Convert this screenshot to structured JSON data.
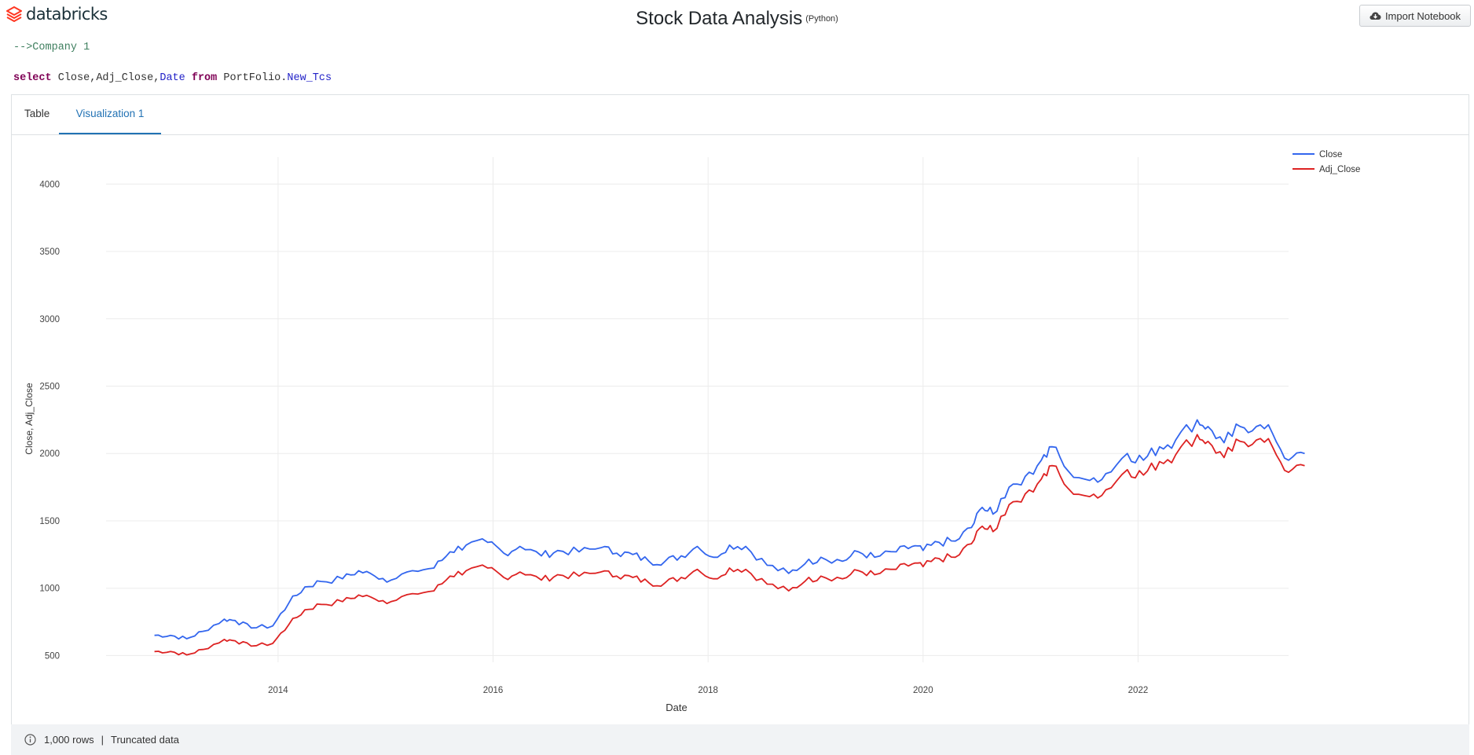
{
  "app": {
    "brand": "databricks"
  },
  "header": {
    "title": "Stock Data Analysis",
    "language": "(Python)",
    "import_label": "Import Notebook"
  },
  "cell": {
    "comment": "-->Company 1",
    "sql": {
      "kw_select": "select",
      "columns": "Close,Adj_Close,",
      "col_date": "Date",
      "kw_from": "from",
      "schema": "PortFolio.",
      "table": "New_Tcs"
    }
  },
  "tabs": [
    {
      "label": "Table",
      "active": false
    },
    {
      "label": "Visualization 1",
      "active": true
    }
  ],
  "footer": {
    "rows": "1,000 rows",
    "separator": "|",
    "status": "Truncated data"
  },
  "colors": {
    "close": "#3366ee",
    "adj_close": "#dd2222",
    "grid": "#ececec"
  },
  "chart_data": {
    "type": "line",
    "title": "",
    "xlabel": "Date",
    "ylabel": "Close, Adj_Close",
    "xlim": [
      2012.4,
      2023.4
    ],
    "ylim": [
      450,
      4200
    ],
    "xticks": [
      2014,
      2016,
      2018,
      2020,
      2022
    ],
    "yticks": [
      500,
      1000,
      1500,
      2000,
      2500,
      3000,
      3500,
      4000
    ],
    "grid": true,
    "legend": "top-right",
    "series": [
      {
        "name": "Close",
        "color": "#3366ee",
        "points": [
          [
            2012.85,
            650
          ],
          [
            2013.0,
            650
          ],
          [
            2013.15,
            625
          ],
          [
            2013.3,
            680
          ],
          [
            2013.5,
            770
          ],
          [
            2013.6,
            760
          ],
          [
            2013.75,
            705
          ],
          [
            2013.95,
            720
          ],
          [
            2014.1,
            890
          ],
          [
            2014.25,
            1010
          ],
          [
            2014.4,
            1050
          ],
          [
            2014.6,
            1070
          ],
          [
            2014.75,
            1130
          ],
          [
            2014.9,
            1090
          ],
          [
            2015.05,
            1060
          ],
          [
            2015.25,
            1130
          ],
          [
            2015.45,
            1150
          ],
          [
            2015.6,
            1270
          ],
          [
            2015.75,
            1320
          ],
          [
            2015.95,
            1340
          ],
          [
            2016.1,
            1260
          ],
          [
            2016.25,
            1310
          ],
          [
            2016.45,
            1240
          ],
          [
            2016.6,
            1280
          ],
          [
            2016.8,
            1270
          ],
          [
            2017.0,
            1300
          ],
          [
            2017.15,
            1260
          ],
          [
            2017.3,
            1250
          ],
          [
            2017.45,
            1200
          ],
          [
            2017.6,
            1200
          ],
          [
            2017.75,
            1240
          ],
          [
            2017.9,
            1310
          ],
          [
            2018.05,
            1230
          ],
          [
            2018.2,
            1320
          ],
          [
            2018.35,
            1310
          ],
          [
            2018.55,
            1170
          ],
          [
            2018.75,
            1110
          ],
          [
            2018.9,
            1180
          ],
          [
            2019.05,
            1230
          ],
          [
            2019.25,
            1200
          ],
          [
            2019.4,
            1270
          ],
          [
            2019.55,
            1230
          ],
          [
            2019.75,
            1270
          ],
          [
            2019.9,
            1310
          ],
          [
            2020.0,
            1280
          ],
          [
            2020.15,
            1340
          ],
          [
            2020.3,
            1350
          ],
          [
            2020.45,
            1450
          ],
          [
            2020.55,
            1600
          ],
          [
            2020.65,
            1550
          ],
          [
            2020.8,
            1750
          ],
          [
            2020.95,
            1830
          ],
          [
            2021.1,
            1950
          ],
          [
            2021.2,
            2050
          ],
          [
            2021.35,
            1870
          ],
          [
            2021.55,
            1800
          ],
          [
            2021.7,
            1850
          ],
          [
            2021.9,
            2000
          ],
          [
            2022.05,
            1950
          ],
          [
            2022.2,
            2050
          ],
          [
            2022.35,
            2100
          ],
          [
            2022.55,
            2250
          ],
          [
            2022.65,
            2200
          ],
          [
            2022.8,
            2080
          ],
          [
            2022.95,
            2200
          ],
          [
            2023.1,
            2200
          ],
          [
            2023.25,
            2150
          ],
          [
            2023.4,
            1950
          ],
          [
            2023.55,
            2000
          ]
        ]
      },
      {
        "name": "Adj_Close",
        "color": "#dd2222",
        "points": [
          [
            2012.85,
            530
          ],
          [
            2013.0,
            530
          ],
          [
            2013.15,
            505
          ],
          [
            2013.3,
            545
          ],
          [
            2013.5,
            620
          ],
          [
            2013.6,
            610
          ],
          [
            2013.75,
            570
          ],
          [
            2013.95,
            590
          ],
          [
            2014.1,
            730
          ],
          [
            2014.25,
            840
          ],
          [
            2014.4,
            880
          ],
          [
            2014.6,
            900
          ],
          [
            2014.75,
            950
          ],
          [
            2014.9,
            920
          ],
          [
            2015.05,
            900
          ],
          [
            2015.25,
            960
          ],
          [
            2015.45,
            980
          ],
          [
            2015.6,
            1090
          ],
          [
            2015.75,
            1130
          ],
          [
            2015.95,
            1150
          ],
          [
            2016.1,
            1080
          ],
          [
            2016.25,
            1120
          ],
          [
            2016.45,
            1060
          ],
          [
            2016.6,
            1100
          ],
          [
            2016.8,
            1090
          ],
          [
            2017.0,
            1120
          ],
          [
            2017.15,
            1090
          ],
          [
            2017.3,
            1080
          ],
          [
            2017.45,
            1040
          ],
          [
            2017.6,
            1040
          ],
          [
            2017.75,
            1080
          ],
          [
            2017.9,
            1140
          ],
          [
            2018.05,
            1070
          ],
          [
            2018.2,
            1150
          ],
          [
            2018.35,
            1140
          ],
          [
            2018.55,
            1030
          ],
          [
            2018.75,
            980
          ],
          [
            2018.9,
            1050
          ],
          [
            2019.05,
            1090
          ],
          [
            2019.25,
            1070
          ],
          [
            2019.4,
            1130
          ],
          [
            2019.55,
            1100
          ],
          [
            2019.75,
            1140
          ],
          [
            2019.9,
            1180
          ],
          [
            2020.0,
            1160
          ],
          [
            2020.15,
            1220
          ],
          [
            2020.3,
            1230
          ],
          [
            2020.45,
            1330
          ],
          [
            2020.55,
            1460
          ],
          [
            2020.65,
            1420
          ],
          [
            2020.8,
            1620
          ],
          [
            2020.95,
            1700
          ],
          [
            2021.1,
            1810
          ],
          [
            2021.2,
            1910
          ],
          [
            2021.35,
            1740
          ],
          [
            2021.55,
            1680
          ],
          [
            2021.7,
            1730
          ],
          [
            2021.9,
            1880
          ],
          [
            2022.05,
            1840
          ],
          [
            2022.2,
            1940
          ],
          [
            2022.35,
            1990
          ],
          [
            2022.55,
            2140
          ],
          [
            2022.65,
            2090
          ],
          [
            2022.8,
            1970
          ],
          [
            2022.95,
            2090
          ],
          [
            2023.1,
            2100
          ],
          [
            2023.25,
            2050
          ],
          [
            2023.4,
            1860
          ],
          [
            2023.55,
            1910
          ]
        ]
      }
    ]
  }
}
